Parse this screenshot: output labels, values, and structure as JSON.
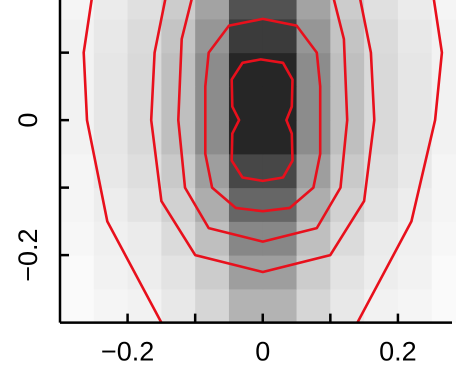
{
  "chart_data": {
    "type": "heatmap_contour",
    "x_edges": [
      -0.3,
      -0.25,
      -0.2,
      -0.15,
      -0.1,
      -0.05,
      0,
      0.05,
      0.1,
      0.15,
      0.2,
      0.25,
      0.3
    ],
    "y_edges": [
      -0.3,
      -0.25,
      -0.2,
      -0.15,
      -0.1,
      -0.05,
      0,
      0.05,
      0.1,
      0.15,
      0.2
    ],
    "z": [
      [
        0.02,
        0.04,
        0.05,
        0.09,
        0.16,
        0.3,
        0.3,
        0.16,
        0.09,
        0.05,
        0.04,
        0.02
      ],
      [
        0.02,
        0.05,
        0.07,
        0.11,
        0.2,
        0.38,
        0.38,
        0.2,
        0.11,
        0.07,
        0.05,
        0.02
      ],
      [
        0.03,
        0.06,
        0.08,
        0.14,
        0.25,
        0.47,
        0.47,
        0.25,
        0.14,
        0.08,
        0.06,
        0.03
      ],
      [
        0.04,
        0.07,
        0.11,
        0.18,
        0.32,
        0.6,
        0.6,
        0.32,
        0.18,
        0.11,
        0.07,
        0.04
      ],
      [
        0.04,
        0.09,
        0.13,
        0.21,
        0.38,
        0.72,
        0.72,
        0.38,
        0.21,
        0.13,
        0.09,
        0.04
      ],
      [
        0.05,
        0.1,
        0.15,
        0.25,
        0.45,
        0.85,
        0.85,
        0.45,
        0.25,
        0.15,
        0.1,
        0.05
      ],
      [
        0.05,
        0.1,
        0.15,
        0.25,
        0.45,
        0.85,
        0.85,
        0.45,
        0.25,
        0.15,
        0.1,
        0.05
      ],
      [
        0.05,
        0.1,
        0.15,
        0.25,
        0.45,
        0.85,
        0.85,
        0.45,
        0.25,
        0.15,
        0.1,
        0.05
      ],
      [
        0.05,
        0.09,
        0.14,
        0.23,
        0.41,
        0.77,
        0.77,
        0.41,
        0.23,
        0.14,
        0.09,
        0.05
      ],
      [
        0.04,
        0.08,
        0.12,
        0.2,
        0.36,
        0.68,
        0.68,
        0.36,
        0.2,
        0.12,
        0.08,
        0.04
      ]
    ],
    "contour_color": "#e8101c",
    "contours": [
      {
        "x": [
          -0.003,
          -0.03,
          -0.046,
          -0.045,
          -0.035,
          -0.045,
          -0.046,
          -0.03,
          0,
          0.03,
          0.044,
          0.043,
          0.035,
          0.043,
          0.044,
          0.03,
          -0.003
        ],
        "y": [
          0.09,
          0.085,
          0.06,
          0.02,
          0,
          -0.02,
          -0.06,
          -0.085,
          -0.09,
          -0.085,
          -0.06,
          -0.02,
          0,
          0.02,
          0.06,
          0.085,
          0.09
        ]
      },
      {
        "x": [
          0,
          -0.05,
          -0.08,
          -0.085,
          -0.085,
          -0.075,
          -0.04,
          0,
          0.04,
          0.075,
          0.085,
          0.085,
          0.08,
          0.05,
          0
        ],
        "y": [
          0.15,
          0.14,
          0.1,
          0.05,
          -0.05,
          -0.1,
          -0.13,
          -0.135,
          -0.13,
          -0.1,
          -0.05,
          0.05,
          0.1,
          0.14,
          0.15
        ]
      },
      {
        "x": [
          -0.1,
          -0.12,
          -0.125,
          -0.115,
          -0.08,
          0,
          0.08,
          0.115,
          0.125,
          0.12,
          0.1
        ],
        "y": [
          0.2,
          0.12,
          0,
          -0.1,
          -0.16,
          -0.18,
          -0.16,
          -0.1,
          0,
          0.12,
          0.2
        ]
      },
      {
        "x": [
          -0.14,
          -0.16,
          -0.165,
          -0.15,
          -0.1,
          0,
          0.1,
          0.15,
          0.165,
          0.16,
          0.14
        ],
        "y": [
          0.2,
          0.1,
          0,
          -0.12,
          -0.2,
          -0.225,
          -0.2,
          -0.12,
          0,
          0.1,
          0.2
        ]
      },
      {
        "x": [
          -0.25,
          -0.265,
          -0.26,
          -0.23,
          -0.15,
          null,
          0.14,
          0.22,
          0.255,
          0.265,
          0.25
        ],
        "y": [
          0.2,
          0.1,
          0,
          -0.15,
          -0.3,
          null,
          -0.3,
          -0.15,
          0,
          0.1,
          0.2
        ]
      }
    ],
    "xlim": [
      -0.3,
      0.28
    ],
    "ylim": [
      -0.3,
      0.178
    ],
    "xticks": [
      {
        "value": -0.2,
        "label": "−0.2"
      },
      0,
      {
        "value": 0.2,
        "label": "0.2"
      }
    ],
    "xminorticks": [
      -0.1,
      0.1
    ],
    "yticks": [
      {
        "value": -0.2,
        "label": "−0.2"
      },
      0
    ],
    "yminorticks": [
      -0.1,
      0.1
    ]
  }
}
